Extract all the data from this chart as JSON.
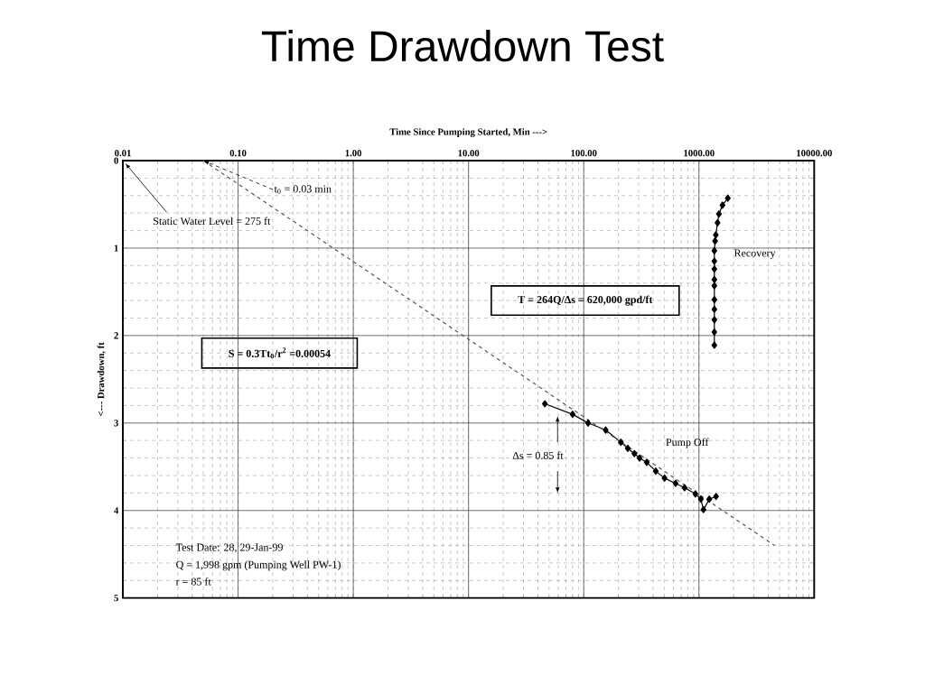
{
  "chart_data": {
    "type": "line",
    "title": "Time Drawdown Test",
    "xlabel": "Time Since Pumping Started, Min --->",
    "ylabel": "<--- Drawdown, ft",
    "log": "x",
    "xlim": [
      0.01,
      10000
    ],
    "ylim": [
      5,
      0
    ],
    "xticks": [
      {
        "value": 0.01,
        "label": "0.01"
      },
      {
        "value": 0.1,
        "label": "0.10"
      },
      {
        "value": 1,
        "label": "1.00"
      },
      {
        "value": 10,
        "label": "10.00"
      },
      {
        "value": 100,
        "label": "100.00"
      },
      {
        "value": 1000,
        "label": "1000.00"
      },
      {
        "value": 10000,
        "label": "10000.00"
      }
    ],
    "yticks": [
      0,
      1,
      2,
      3,
      4,
      5
    ],
    "grid": true,
    "marker": "diamond",
    "line_style": "solid",
    "series": [
      {
        "color": "#000000",
        "x": [
          46,
          80,
          109,
          155,
          210,
          241,
          275,
          305,
          352,
          422,
          502,
          626,
          750,
          931,
          1038,
          1094,
          1230,
          1406
        ],
        "values": [
          2.78,
          2.9,
          3.0,
          3.08,
          3.22,
          3.29,
          3.35,
          3.4,
          3.45,
          3.55,
          3.63,
          3.69,
          3.74,
          3.81,
          3.87,
          3.99,
          3.87,
          3.84
        ]
      },
      {
        "color": "#000000",
        "x": [
          1360,
          1360,
          1360,
          1360,
          1360,
          1360,
          1360,
          1360,
          1360,
          1360,
          1380,
          1400,
          1450,
          1490,
          1600,
          1780
        ],
        "values": [
          2.11,
          1.96,
          1.82,
          1.7,
          1.59,
          1.43,
          1.36,
          1.24,
          1.15,
          1.03,
          0.92,
          0.85,
          0.71,
          0.61,
          0.51,
          0.43
        ]
      },
      {
        "color": "#555555",
        "marker": "none",
        "line_style": "dashed",
        "x": [
          0.05,
          4530
        ],
        "values": [
          0,
          4.4
        ]
      }
    ],
    "annotations": [
      "Static Water Level = 275 ft",
      {
        "text": "t$_{0}$ = 0.03 min",
        "x": 0.05,
        "y": 0
      },
      "S = 0.3Tt$_{0}$/r$^{2}$ =0.00054",
      "T = 264Q/Δs = 620,000 gpd/ft",
      "Δs = 0.85 ft",
      "Pump Off",
      "Recovery",
      "Test Date: 28, 29-Jan-99",
      "Q = 1,998 gpm (Pumping Well PW-1)",
      "r = 85 ft"
    ]
  }
}
